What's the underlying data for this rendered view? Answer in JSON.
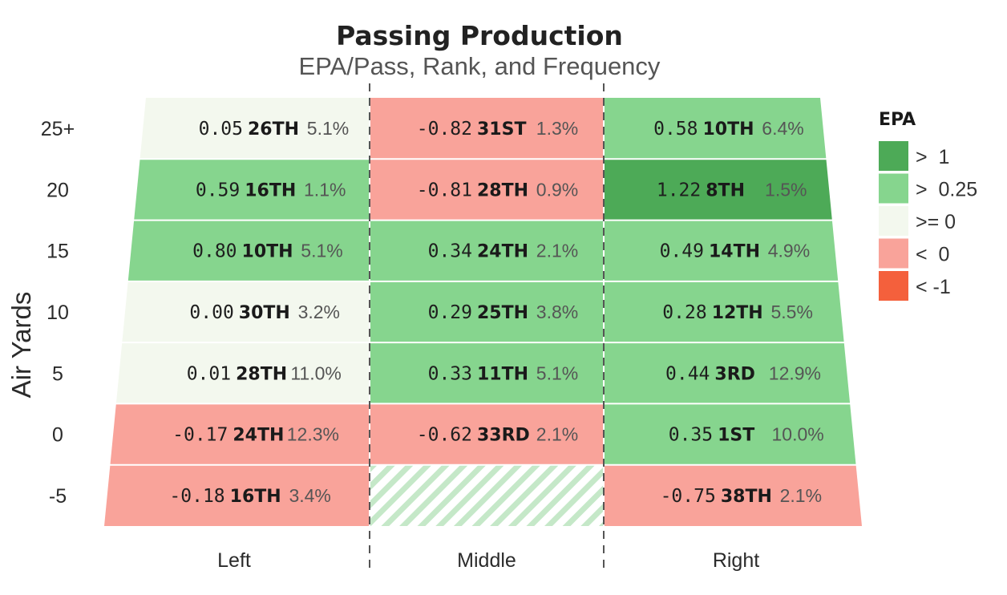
{
  "chart_data": {
    "type": "heatmap",
    "title": "Passing Production",
    "subtitle": "EPA/Pass, Rank, and Frequency",
    "ylabel": "Air Yards",
    "xlabel": "",
    "columns": [
      "Left",
      "Middle",
      "Right"
    ],
    "rows": [
      "25+",
      "20",
      "15",
      "10",
      "5",
      "0",
      "-5"
    ],
    "cells": [
      [
        {
          "epa": "0.05",
          "rank": "26TH",
          "freq": "5.1%"
        },
        {
          "epa": "-0.82",
          "rank": "31ST",
          "freq": "1.3%"
        },
        {
          "epa": "0.58",
          "rank": "10TH",
          "freq": "6.4%"
        }
      ],
      [
        {
          "epa": "0.59",
          "rank": "16TH",
          "freq": "1.1%"
        },
        {
          "epa": "-0.81",
          "rank": "28TH",
          "freq": "0.9%"
        },
        {
          "epa": "1.22",
          "rank": "8TH",
          "freq": "1.5%"
        }
      ],
      [
        {
          "epa": "0.80",
          "rank": "10TH",
          "freq": "5.1%"
        },
        {
          "epa": "0.34",
          "rank": "24TH",
          "freq": "2.1%"
        },
        {
          "epa": "0.49",
          "rank": "14TH",
          "freq": "4.9%"
        }
      ],
      [
        {
          "epa": "0.00",
          "rank": "30TH",
          "freq": "3.2%"
        },
        {
          "epa": "0.29",
          "rank": "25TH",
          "freq": "3.8%"
        },
        {
          "epa": "0.28",
          "rank": "12TH",
          "freq": "5.5%"
        }
      ],
      [
        {
          "epa": "0.01",
          "rank": "28TH",
          "freq": "11.0%"
        },
        {
          "epa": "0.33",
          "rank": "11TH",
          "freq": "5.1%"
        },
        {
          "epa": "0.44",
          "rank": "3RD",
          "freq": "12.9%"
        }
      ],
      [
        {
          "epa": "-0.17",
          "rank": "24TH",
          "freq": "12.3%"
        },
        {
          "epa": "-0.62",
          "rank": "33RD",
          "freq": "2.1%"
        },
        {
          "epa": "0.35",
          "rank": "1ST",
          "freq": "10.0%"
        }
      ],
      [
        {
          "epa": "-0.18",
          "rank": "16TH",
          "freq": "3.4%"
        },
        null,
        {
          "epa": "-0.75",
          "rank": "38TH",
          "freq": "2.1%"
        }
      ]
    ],
    "legend": {
      "title": "EPA",
      "position": "right",
      "items": [
        {
          "label": ">  1",
          "color": "#4daa57"
        },
        {
          "label": ">  0.25",
          "color": "#86d58e"
        },
        {
          "label": ">= 0",
          "color": "#f3f8ee"
        },
        {
          "label": "<  0",
          "color": "#f9a39a"
        },
        {
          "label": "< -1",
          "color": "#f4603c"
        }
      ]
    },
    "no_data_pattern_color": "#c5e8c8"
  }
}
